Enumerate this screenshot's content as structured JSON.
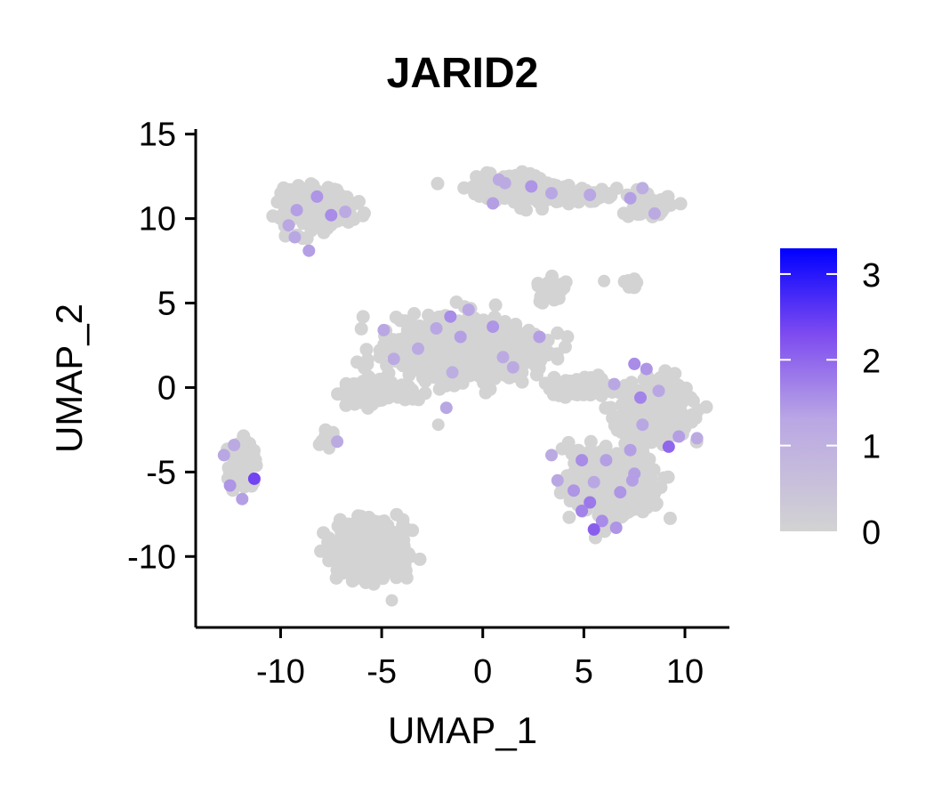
{
  "chart_data": {
    "type": "scatter",
    "title": "JARID2",
    "xlabel": "UMAP_1",
    "ylabel": "UMAP_2",
    "xlim": [
      -14.2,
      12.2
    ],
    "ylim": [
      -14.2,
      15.3
    ],
    "xticks": [
      -10,
      -5,
      0,
      5,
      10
    ],
    "yticks": [
      15,
      10,
      5,
      0,
      -5,
      -10
    ],
    "xtick_labels": [
      "-10",
      "-5",
      "0",
      "5",
      "10"
    ],
    "ytick_labels": [
      "15",
      "10",
      "5",
      "0",
      "-5",
      "-10"
    ],
    "grid": false,
    "legend": {
      "placement": "right",
      "type": "colorbar",
      "min": 0,
      "max": 3.3,
      "ticks": [
        0,
        1,
        2,
        3
      ],
      "tick_labels": [
        "0",
        "1",
        "2",
        "3"
      ],
      "low_color": "#d3d3d3",
      "high_color": "#0000ff"
    },
    "clusters": [
      {
        "name": "cluster-top-left",
        "center": [
          -8.2,
          10.7
        ],
        "spread": [
          1.5,
          1.1
        ],
        "n": 260
      },
      {
        "name": "cluster-top-middle",
        "center": [
          1.4,
          11.8
        ],
        "spread": [
          1.9,
          0.7
        ],
        "n": 220
      },
      {
        "name": "cluster-top-bridge",
        "center": [
          5.0,
          11.3
        ],
        "spread": [
          1.6,
          0.35
        ],
        "n": 50
      },
      {
        "name": "cluster-top-right",
        "center": [
          8.2,
          10.9
        ],
        "spread": [
          0.9,
          0.7
        ],
        "n": 80
      },
      {
        "name": "cluster-small-right",
        "center": [
          7.3,
          6.2
        ],
        "spread": [
          0.4,
          0.3
        ],
        "n": 12
      },
      {
        "name": "cluster-mid-top",
        "center": [
          3.4,
          5.7
        ],
        "spread": [
          0.7,
          0.55
        ],
        "n": 60
      },
      {
        "name": "cluster-center",
        "center": [
          -1.0,
          2.3
        ],
        "spread": [
          3.2,
          1.5
        ],
        "n": 900
      },
      {
        "name": "cluster-center-arm-left",
        "center": [
          -5.2,
          -0.3
        ],
        "spread": [
          1.6,
          0.6
        ],
        "n": 140
      },
      {
        "name": "cluster-center-arm-right",
        "center": [
          4.8,
          0.0
        ],
        "spread": [
          1.3,
          0.4
        ],
        "n": 90
      },
      {
        "name": "cluster-small-left",
        "center": [
          -7.6,
          -3.0
        ],
        "spread": [
          0.4,
          0.35
        ],
        "n": 15
      },
      {
        "name": "cluster-left",
        "center": [
          -12.0,
          -4.6
        ],
        "spread": [
          0.7,
          1.1
        ],
        "n": 100
      },
      {
        "name": "cluster-bottom",
        "center": [
          -5.6,
          -9.4
        ],
        "spread": [
          1.5,
          1.4
        ],
        "n": 550
      },
      {
        "name": "cluster-right-upper",
        "center": [
          8.4,
          -1.5
        ],
        "spread": [
          1.5,
          1.6
        ],
        "n": 420
      },
      {
        "name": "cluster-right-lower",
        "center": [
          6.3,
          -5.6
        ],
        "spread": [
          1.8,
          1.6
        ],
        "n": 520
      }
    ],
    "expressing_points": [
      [
        -9.2,
        10.5
      ],
      [
        -8.2,
        11.3
      ],
      [
        -9.3,
        8.9
      ],
      [
        -7.5,
        10.2
      ],
      [
        -6.8,
        10.4
      ],
      [
        -8.6,
        8.1
      ],
      [
        -9.6,
        9.6
      ],
      [
        0.8,
        12.3
      ],
      [
        2.4,
        11.9
      ],
      [
        3.4,
        11.5
      ],
      [
        0.5,
        10.9
      ],
      [
        1.1,
        12.1
      ],
      [
        7.3,
        11.2
      ],
      [
        8.5,
        10.3
      ],
      [
        5.3,
        11.4
      ],
      [
        7.9,
        11.8
      ],
      [
        -2.3,
        3.5
      ],
      [
        -1.6,
        4.2
      ],
      [
        0.5,
        3.6
      ],
      [
        -3.2,
        2.3
      ],
      [
        -4.9,
        3.4
      ],
      [
        -1.1,
        3.0
      ],
      [
        2.8,
        3.0
      ],
      [
        1.0,
        1.8
      ],
      [
        -1.8,
        -1.2
      ],
      [
        -4.4,
        1.7
      ],
      [
        -0.7,
        4.6
      ],
      [
        -1.5,
        0.9
      ],
      [
        1.5,
        1.2
      ],
      [
        -7.2,
        -3.2
      ],
      [
        -12.8,
        -4.0
      ],
      [
        -12.5,
        -5.8
      ],
      [
        -11.3,
        -5.4
      ],
      [
        -11.9,
        -6.6
      ],
      [
        -12.3,
        -3.4
      ],
      [
        7.5,
        1.4
      ],
      [
        7.8,
        -0.6
      ],
      [
        8.7,
        -0.2
      ],
      [
        9.2,
        -3.5
      ],
      [
        7.3,
        -3.7
      ],
      [
        6.5,
        0.2
      ],
      [
        9.7,
        -2.9
      ],
      [
        10.6,
        -3.0
      ],
      [
        8.1,
        1.1
      ],
      [
        7.9,
        -2.2
      ],
      [
        4.5,
        -6.1
      ],
      [
        5.3,
        -6.8
      ],
      [
        5.9,
        -7.9
      ],
      [
        5.5,
        -8.4
      ],
      [
        4.9,
        -7.3
      ],
      [
        6.8,
        -6.2
      ],
      [
        7.4,
        -5.5
      ],
      [
        5.5,
        -5.6
      ],
      [
        6.1,
        -4.3
      ],
      [
        3.7,
        -5.5
      ],
      [
        4.9,
        -4.3
      ],
      [
        6.6,
        -8.3
      ],
      [
        7.5,
        -5.1
      ],
      [
        3.4,
        -4.0
      ]
    ],
    "expressing_values": [
      1.4,
      1.5,
      1.3,
      1.6,
      1.2,
      1.4,
      1.3,
      1.2,
      1.5,
      1.3,
      1.4,
      1.2,
      1.4,
      1.2,
      1.3,
      1.1,
      1.3,
      1.6,
      1.5,
      1.2,
      1.3,
      1.4,
      1.4,
      1.2,
      1.3,
      1.2,
      1.3,
      1.1,
      1.2,
      1.2,
      1.3,
      1.5,
      2.4,
      1.4,
      1.2,
      1.6,
      1.7,
      1.3,
      2.0,
      1.4,
      1.3,
      1.4,
      1.2,
      1.5,
      1.3,
      1.5,
      1.8,
      1.6,
      2.1,
      1.7,
      1.5,
      1.4,
      1.3,
      1.4,
      1.3,
      1.6,
      1.5,
      1.4,
      1.2
    ]
  }
}
